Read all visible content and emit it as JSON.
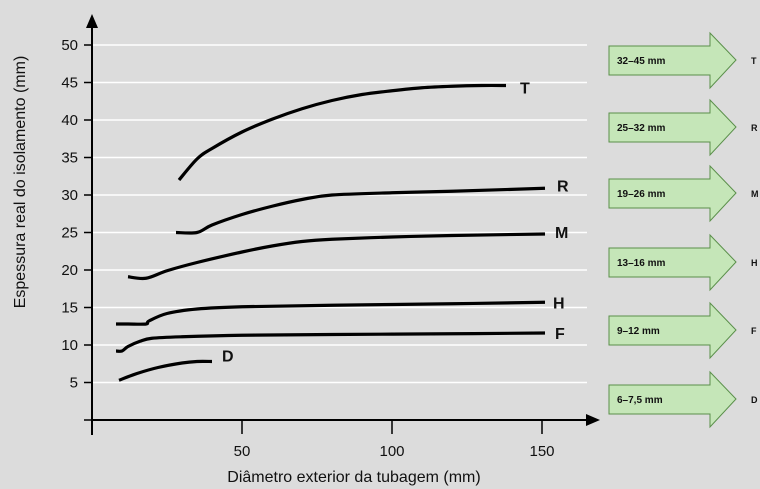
{
  "chart_data": {
    "type": "line",
    "title": "",
    "xlabel": "Diâmetro exterior da tubagem (mm)",
    "ylabel": "Espessura real do isolamento (mm)",
    "xlim": [
      0,
      160
    ],
    "ylim": [
      0,
      50
    ],
    "x_ticks": [
      "50",
      "100",
      "150"
    ],
    "y_ticks": [
      "5",
      "10",
      "15",
      "20",
      "25",
      "30",
      "35",
      "40",
      "45",
      "50"
    ],
    "grid": "horizontal",
    "background_color": "#dcdcdc",
    "gridline_color": "#ffffff",
    "series": [
      {
        "name": "D",
        "points": [
          [
            9,
            5.3
          ],
          [
            15,
            6.2
          ],
          [
            22,
            7.0
          ],
          [
            30,
            7.6
          ],
          [
            35,
            7.8
          ],
          [
            40,
            7.8
          ]
        ]
      },
      {
        "name": "F",
        "points": [
          [
            8,
            9.2
          ],
          [
            10,
            9.2
          ],
          [
            12,
            9.8
          ],
          [
            16,
            10.5
          ],
          [
            20,
            10.9
          ],
          [
            30,
            11.1
          ],
          [
            50,
            11.3
          ],
          [
            80,
            11.4
          ],
          [
            120,
            11.5
          ],
          [
            151,
            11.6
          ]
        ]
      },
      {
        "name": "H",
        "points": [
          [
            8,
            12.8
          ],
          [
            12,
            12.8
          ],
          [
            18,
            12.8
          ],
          [
            19,
            13.2
          ],
          [
            25,
            14.2
          ],
          [
            35,
            14.8
          ],
          [
            50,
            15.1
          ],
          [
            80,
            15.3
          ],
          [
            120,
            15.5
          ],
          [
            151,
            15.7
          ]
        ]
      },
      {
        "name": "M",
        "points": [
          [
            12,
            19.1
          ],
          [
            18,
            18.9
          ],
          [
            25,
            19.9
          ],
          [
            35,
            21.0
          ],
          [
            50,
            22.4
          ],
          [
            60,
            23.2
          ],
          [
            70,
            23.8
          ],
          [
            80,
            24.1
          ],
          [
            100,
            24.4
          ],
          [
            120,
            24.6
          ],
          [
            151,
            24.8
          ]
        ]
      },
      {
        "name": "R",
        "points": [
          [
            28,
            25.0
          ],
          [
            35,
            25.0
          ],
          [
            40,
            26.0
          ],
          [
            50,
            27.4
          ],
          [
            60,
            28.5
          ],
          [
            70,
            29.4
          ],
          [
            80,
            30.0
          ],
          [
            100,
            30.3
          ],
          [
            120,
            30.5
          ],
          [
            151,
            30.9
          ]
        ]
      },
      {
        "name": "T",
        "points": [
          [
            29,
            32.0
          ],
          [
            35,
            34.8
          ],
          [
            40,
            36.2
          ],
          [
            50,
            38.4
          ],
          [
            60,
            40.1
          ],
          [
            70,
            41.5
          ],
          [
            80,
            42.6
          ],
          [
            90,
            43.4
          ],
          [
            100,
            43.9
          ],
          [
            110,
            44.3
          ],
          [
            120,
            44.5
          ],
          [
            130,
            44.6
          ],
          [
            138,
            44.6
          ]
        ]
      }
    ]
  },
  "arrows": [
    {
      "text": "32–45 mm",
      "code": "T"
    },
    {
      "text": "25–32 mm",
      "code": "R"
    },
    {
      "text": "19–26 mm",
      "code": "M"
    },
    {
      "text": "13–16 mm",
      "code": "H"
    },
    {
      "text": "9–12 mm",
      "code": "F"
    },
    {
      "text": "6–7,5 mm",
      "code": "D"
    }
  ],
  "colors": {
    "arrow_fill": "#c5e6b8",
    "arrow_stroke": "#5a8f4a",
    "axis": "#000000",
    "curve": "#000000"
  }
}
